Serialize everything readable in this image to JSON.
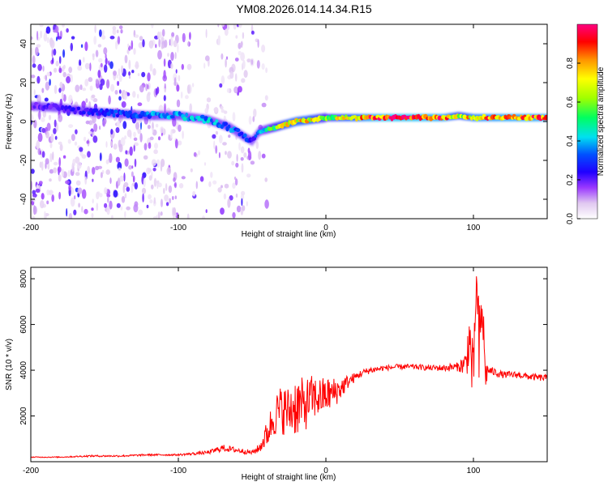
{
  "figure_title": "YM08.2026.014.14.34.R15",
  "chart_data": [
    {
      "type": "heatmap",
      "xlabel": "Height of straight line (km)",
      "ylabel": "Frequency (Hz)",
      "xlim": [
        -200,
        150
      ],
      "ylim": [
        -50,
        50
      ],
      "x_ticks": [
        -200,
        -100,
        0,
        100
      ],
      "y_ticks": [
        -40,
        -20,
        0,
        20,
        40
      ],
      "colorbar": {
        "label": "Normalized spectral amplitude",
        "range": [
          0,
          1
        ],
        "ticks": [
          0.0,
          0.2,
          0.4,
          0.6,
          0.8
        ],
        "colormap": [
          "#ffffff",
          "#e0c8f0",
          "#9a38ff",
          "#2000ff",
          "#0050ff",
          "#00e0f0",
          "#00ff60",
          "#a0ff00",
          "#ffff00",
          "#ff9000",
          "#ff0000",
          "#ff0080"
        ]
      },
      "ridge": {
        "description": "dominant frequency band vs height",
        "x": [
          -200,
          -180,
          -160,
          -140,
          -120,
          -100,
          -80,
          -65,
          -55,
          -50,
          -45,
          -40,
          -35,
          -30,
          -20,
          -10,
          0,
          10,
          20,
          30,
          40,
          60,
          80,
          90,
          100,
          120,
          150
        ],
        "y": [
          8,
          7,
          5,
          4,
          3,
          3,
          1,
          -3,
          -8,
          -10,
          -5,
          -4,
          -3,
          -2,
          0,
          1,
          2,
          2,
          2,
          2,
          2,
          2,
          2,
          3,
          2,
          2,
          2
        ],
        "amplitude": [
          0.22,
          0.25,
          0.3,
          0.35,
          0.4,
          0.45,
          0.45,
          0.4,
          0.35,
          0.3,
          0.4,
          0.55,
          0.6,
          0.7,
          0.8,
          0.75,
          0.6,
          0.75,
          0.8,
          0.9,
          0.95,
          0.95,
          0.9,
          0.7,
          0.85,
          0.9,
          0.9
        ]
      },
      "noise_region": {
        "x_range": [
          -200,
          -50
        ],
        "amplitude": 0.1
      }
    },
    {
      "type": "line",
      "xlabel": "Height of straight line (km)",
      "ylabel": "SNR (10 * v/v)",
      "xlim": [
        -200,
        150
      ],
      "ylim": [
        0,
        8500
      ],
      "x_ticks": [
        -200,
        -100,
        0,
        100
      ],
      "y_ticks": [
        2000,
        4000,
        6000,
        8000
      ],
      "color": "#ff0000",
      "series": [
        {
          "name": "SNR",
          "x": [
            -200,
            -180,
            -160,
            -140,
            -120,
            -100,
            -80,
            -70,
            -60,
            -50,
            -45,
            -40,
            -35,
            -30,
            -25,
            -20,
            -15,
            -10,
            -5,
            0,
            5,
            10,
            15,
            20,
            25,
            30,
            40,
            50,
            60,
            70,
            80,
            90,
            95,
            97,
            100,
            102,
            104,
            106,
            108,
            110,
            120,
            130,
            140,
            150
          ],
          "y": [
            200,
            200,
            250,
            250,
            300,
            300,
            400,
            600,
            500,
            400,
            600,
            1200,
            2000,
            2300,
            2200,
            2500,
            2400,
            2800,
            2800,
            2900,
            3000,
            3200,
            3500,
            3700,
            3900,
            4000,
            4100,
            4150,
            4150,
            4100,
            4100,
            4150,
            4300,
            5500,
            3500,
            8000,
            4500,
            7000,
            3800,
            4000,
            3800,
            3800,
            3700,
            3650
          ]
        }
      ],
      "noise_amplitude": [
        20,
        20,
        40,
        40,
        40,
        40,
        80,
        150,
        120,
        100,
        200,
        600,
        900,
        1100,
        1100,
        1400,
        1200,
        1000,
        900,
        800,
        700,
        500,
        300,
        200,
        150,
        150,
        120,
        120,
        120,
        120,
        150,
        200,
        600,
        1500,
        1500,
        500,
        2500,
        1500,
        800,
        200,
        150,
        150,
        150,
        150
      ]
    }
  ]
}
